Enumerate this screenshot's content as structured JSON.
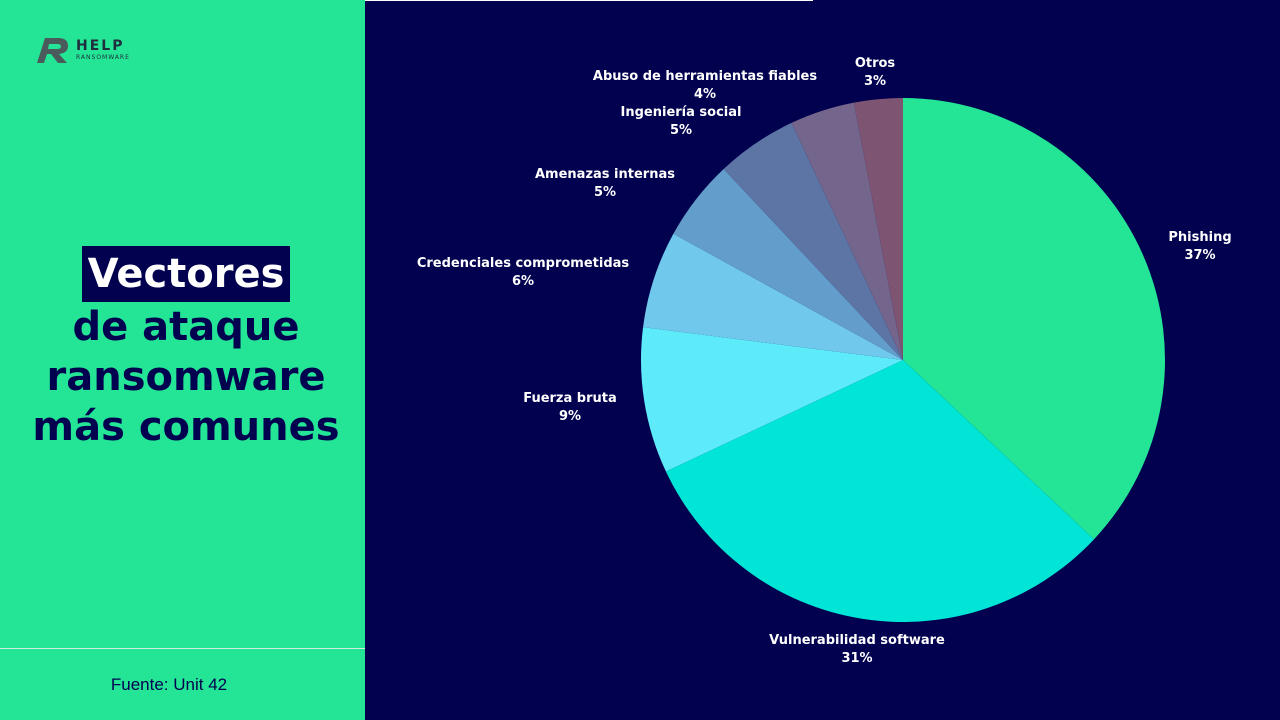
{
  "brand": {
    "name": "HELP",
    "tagline": "RANSOMWARE"
  },
  "title": {
    "highlight": "Vectores",
    "line2": "de ataque",
    "line3": "ransomware",
    "line4": "más comunes"
  },
  "source": "Fuente: Unit 42",
  "colors": {
    "left_panel": "#23e595",
    "background": "#02014f",
    "text_dark": "#02014f"
  },
  "chart_data": {
    "type": "pie",
    "title": "Vectores de ataque ransomware más comunes",
    "start": "12 o'clock",
    "direction": "clockwise",
    "slices": [
      {
        "label": "Phishing",
        "value": 37,
        "display": "37%",
        "color": "#23e595"
      },
      {
        "label": "Vulnerabilidad software",
        "value": 31,
        "display": "31%",
        "color": "#00e5d6"
      },
      {
        "label": "Fuerza bruta",
        "value": 9,
        "display": "9%",
        "color": "#5eebf9"
      },
      {
        "label": "Credenciales comprometidas",
        "value": 6,
        "display": "6%",
        "color": "#70c9ec"
      },
      {
        "label": "Amenazas internas",
        "value": 5,
        "display": "5%",
        "color": "#639dcb"
      },
      {
        "label": "Ingeniería social",
        "value": 5,
        "display": "5%",
        "color": "#5d75a5"
      },
      {
        "label": "Abuso de herramientas fiables",
        "value": 4,
        "display": "4%",
        "color": "#73658b"
      },
      {
        "label": "Otros",
        "value": 3,
        "display": "3%",
        "color": "#7e5473"
      }
    ]
  }
}
